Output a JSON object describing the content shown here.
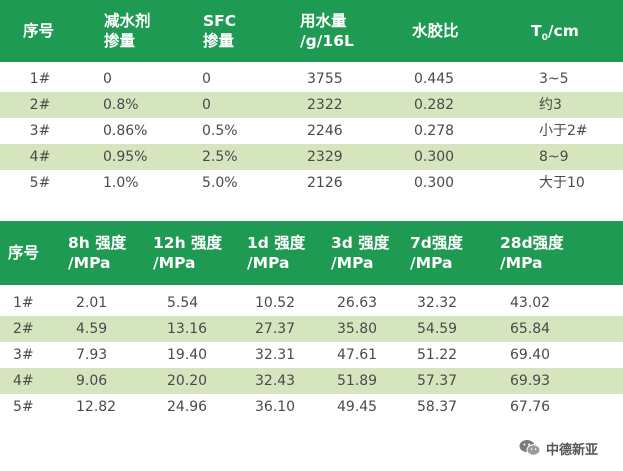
{
  "table1": {
    "headers": [
      {
        "line1": "序号",
        "line2": ""
      },
      {
        "line1": "减水剂",
        "line2": "掺量"
      },
      {
        "line1": "SFC",
        "line2": "掺量"
      },
      {
        "line1": "用水量",
        "line2": "/g/16L"
      },
      {
        "line1": "水胶比",
        "line2": ""
      },
      {
        "line1": "T",
        "sub": "0",
        "tail": "/cm"
      }
    ],
    "rows": [
      [
        "1#",
        "0",
        "0",
        "3755",
        "0.445",
        "3~5"
      ],
      [
        "2#",
        "0.8%",
        "0",
        "2322",
        "0.282",
        "约3"
      ],
      [
        "3#",
        "0.86%",
        "0.5%",
        "2246",
        "0.278",
        "小于2#"
      ],
      [
        "4#",
        "0.95%",
        "2.5%",
        "2329",
        "0.300",
        "8~9"
      ],
      [
        "5#",
        "1.0%",
        "5.0%",
        "2126",
        "0.300",
        "大于10"
      ]
    ]
  },
  "table2": {
    "headers": [
      {
        "line1": "序号",
        "line2": ""
      },
      {
        "line1": "8h 强度",
        "line2": "/MPa"
      },
      {
        "line1": "12h 强度",
        "line2": "/MPa"
      },
      {
        "line1": "1d 强度",
        "line2": "/MPa"
      },
      {
        "line1": "3d 强度",
        "line2": "/MPa"
      },
      {
        "line1": "7d强度",
        "line2": "/MPa"
      },
      {
        "line1": "28d强度",
        "line2": "/MPa"
      }
    ],
    "rows": [
      [
        "1#",
        "2.01",
        "5.54",
        "10.52",
        "26.63",
        "32.32",
        "43.02"
      ],
      [
        "2#",
        "4.59",
        "13.16",
        "27.37",
        "35.80",
        "54.59",
        "65.84"
      ],
      [
        "3#",
        "7.93",
        "19.40",
        "32.31",
        "47.61",
        "51.22",
        "69.40"
      ],
      [
        "4#",
        "9.06",
        "20.20",
        "32.43",
        "51.89",
        "57.37",
        "69.93"
      ],
      [
        "5#",
        "12.82",
        "24.96",
        "36.10",
        "49.45",
        "58.37",
        "67.76"
      ]
    ]
  },
  "watermark": {
    "text": "中德新亚",
    "icon": "wechat-icon"
  },
  "colors": {
    "header": "#1e9a52",
    "alt_row": "#d5e6bf",
    "text": "#4a4a4a"
  }
}
